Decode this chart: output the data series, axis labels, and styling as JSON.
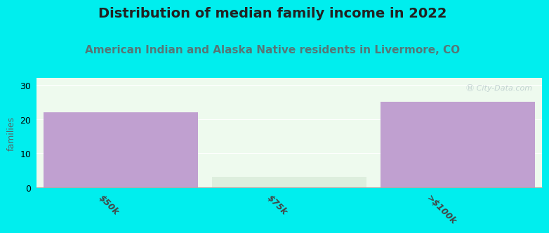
{
  "title": "Distribution of median family income in 2022",
  "subtitle": "American Indian and Alaska Native residents in Livermore, CO",
  "ylabel": "families",
  "categories": [
    "$50k",
    "$75k",
    ">$100k"
  ],
  "values": [
    22,
    3,
    25
  ],
  "bar_color": "#c0a0d0",
  "low_bar_color": "#ddeedd",
  "ylim": [
    0,
    32
  ],
  "yticks": [
    0,
    10,
    20,
    30
  ],
  "background_color": "#00eeee",
  "plot_bg_color": "#eefaee",
  "title_fontsize": 14,
  "subtitle_fontsize": 11,
  "title_color": "#222222",
  "subtitle_color": "#557777",
  "ylabel_color": "#556666",
  "watermark": "Ⓜ City-Data.com",
  "watermark_color": "#bbcccc"
}
